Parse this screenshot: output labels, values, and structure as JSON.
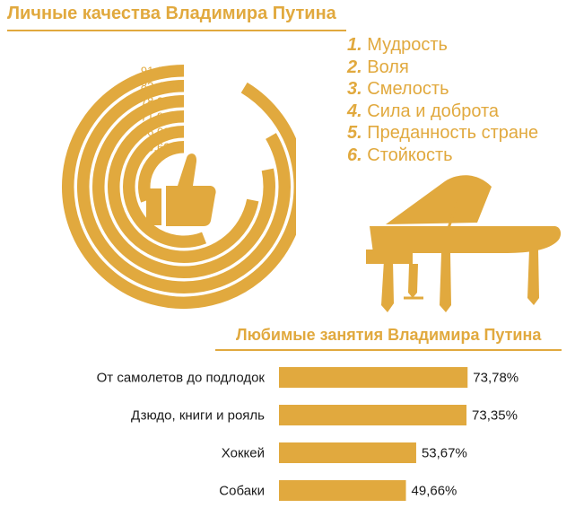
{
  "colors": {
    "accent": "#e1a93e",
    "background": "#ffffff",
    "text": "#1a1a1a"
  },
  "chart_data": [
    {
      "type": "radial_bar",
      "title": "Личные качества Владимира Путина",
      "series": [
        {
          "rank": "1.",
          "name": "Мудрость",
          "value": 91.3,
          "label": "91,30%"
        },
        {
          "rank": "2.",
          "name": "Воля",
          "value": 83.4,
          "label": "83,40%"
        },
        {
          "rank": "3.",
          "name": "Смелость",
          "value": 78.21,
          "label": "78,21%"
        },
        {
          "rank": "4.",
          "name": "Сила и доброта",
          "value": 71.92,
          "label": "71,92%"
        },
        {
          "rank": "5.",
          "name": "Преданность стране",
          "value": 56.0,
          "label": "56,00%"
        },
        {
          "rank": "6.",
          "name": "Стойкость",
          "value": 30.62,
          "label": "30,62%"
        }
      ],
      "center_icon": "thumbs-up-icon"
    },
    {
      "type": "bar",
      "orientation": "horizontal",
      "title": "Любимые занятия Владимира Путина",
      "categories": [
        "От самолетов до подлодок",
        "Дзюдо, книги и рояль",
        "Хоккей",
        "Собаки"
      ],
      "values": [
        73.78,
        73.35,
        53.67,
        49.66
      ],
      "labels": [
        "73,78%",
        "73,35%",
        "53,67%",
        "49,66%"
      ]
    }
  ],
  "decor": {
    "piano_icon": "grand-piano-icon"
  }
}
